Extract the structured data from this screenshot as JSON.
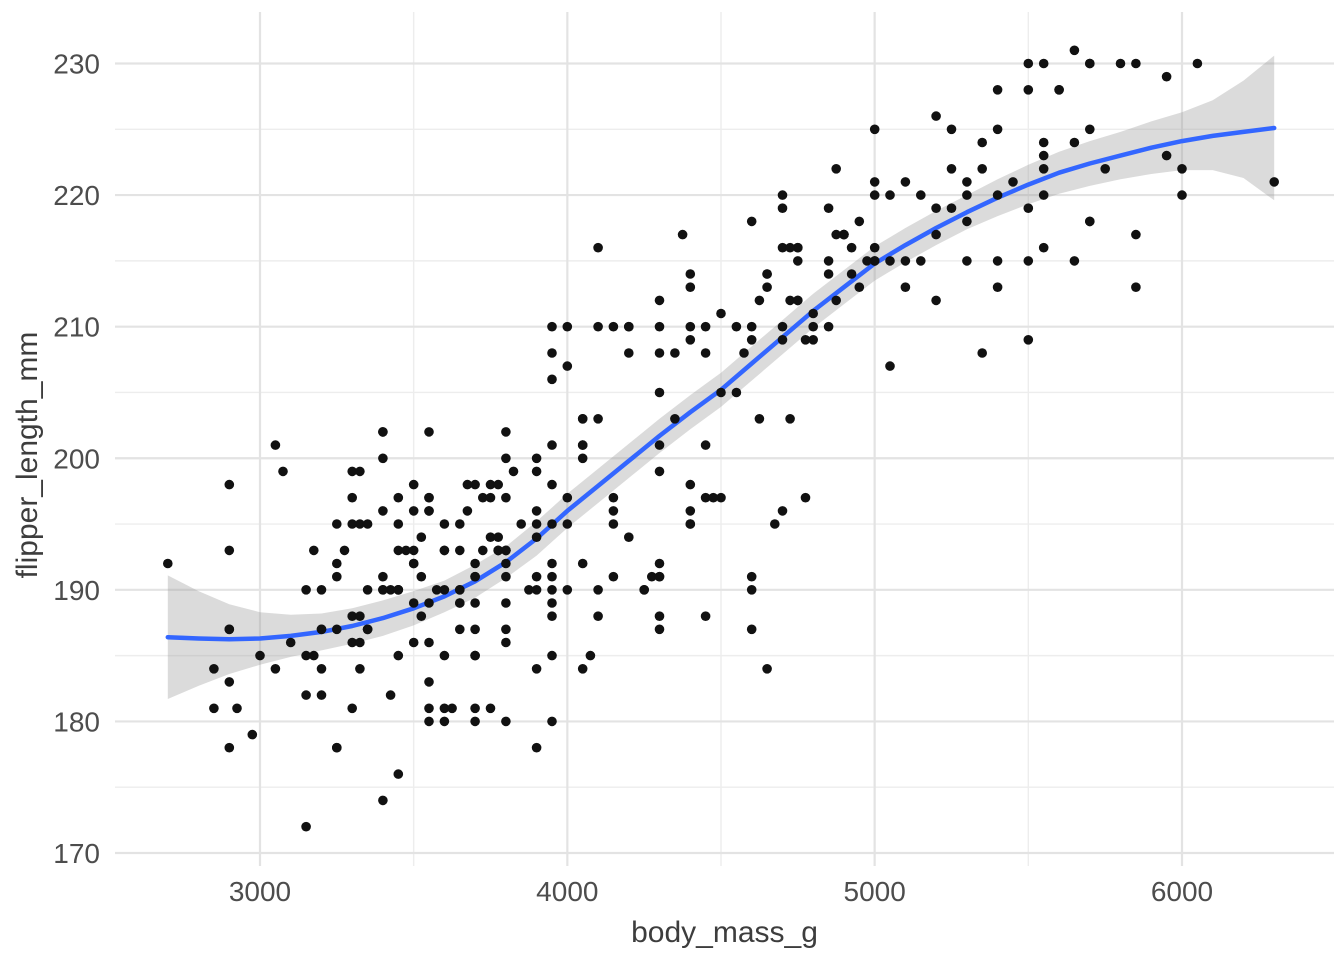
{
  "chart_data": {
    "type": "scatter",
    "title": "",
    "xlabel": "body_mass_g",
    "ylabel": "flipper_length_mm",
    "x_ticks": [
      3000,
      4000,
      5000,
      6000
    ],
    "x_minor_ticks": [
      3500,
      4500,
      5500
    ],
    "y_ticks": [
      170,
      180,
      190,
      200,
      210,
      220,
      230
    ],
    "y_minor_ticks": [
      175,
      185,
      195,
      205,
      215,
      225
    ],
    "xlim": [
      2520,
      6480
    ],
    "ylim": [
      169,
      234
    ],
    "grid": "on",
    "legend": "none",
    "colors": {
      "point": "#111111",
      "smooth_line": "#3366FF",
      "band": "#999999",
      "band_opacity": 0.35,
      "grid_major": "#E3E3E3",
      "grid_minor": "#EDEDED",
      "tick_label": "#4D4D4D",
      "axis_title": "#3d3d3d"
    },
    "points": [
      [
        3750,
        181
      ],
      [
        3800,
        186
      ],
      [
        3250,
        195
      ],
      [
        3450,
        193
      ],
      [
        3650,
        190
      ],
      [
        3625,
        181
      ],
      [
        4675,
        195
      ],
      [
        3475,
        193
      ],
      [
        4250,
        190
      ],
      [
        3300,
        186
      ],
      [
        3700,
        180
      ],
      [
        3200,
        182
      ],
      [
        3800,
        191
      ],
      [
        4400,
        198
      ],
      [
        3700,
        185
      ],
      [
        3450,
        195
      ],
      [
        4500,
        197
      ],
      [
        3325,
        184
      ],
      [
        4200,
        194
      ],
      [
        3400,
        174
      ],
      [
        3600,
        180
      ],
      [
        3800,
        189
      ],
      [
        3950,
        185
      ],
      [
        3800,
        180
      ],
      [
        3800,
        187
      ],
      [
        3550,
        183
      ],
      [
        3200,
        187
      ],
      [
        3150,
        172
      ],
      [
        3950,
        180
      ],
      [
        3250,
        178
      ],
      [
        3900,
        178
      ],
      [
        3300,
        188
      ],
      [
        3900,
        184
      ],
      [
        3325,
        195
      ],
      [
        4150,
        196
      ],
      [
        3950,
        190
      ],
      [
        3550,
        180
      ],
      [
        3300,
        181
      ],
      [
        4650,
        184
      ],
      [
        3150,
        182
      ],
      [
        3900,
        195
      ],
      [
        3100,
        186
      ],
      [
        4400,
        196
      ],
      [
        3000,
        185
      ],
      [
        4600,
        190
      ],
      [
        3425,
        182
      ],
      [
        2975,
        179
      ],
      [
        3450,
        190
      ],
      [
        4150,
        191
      ],
      [
        3500,
        186
      ],
      [
        4300,
        188
      ],
      [
        3450,
        190
      ],
      [
        4050,
        200
      ],
      [
        2900,
        187
      ],
      [
        3700,
        191
      ],
      [
        3550,
        186
      ],
      [
        3800,
        193
      ],
      [
        2850,
        181
      ],
      [
        3750,
        194
      ],
      [
        3150,
        185
      ],
      [
        4400,
        195
      ],
      [
        3600,
        185
      ],
      [
        4050,
        192
      ],
      [
        2850,
        184
      ],
      [
        3950,
        192
      ],
      [
        3350,
        195
      ],
      [
        4100,
        188
      ],
      [
        3600,
        190
      ],
      [
        3950,
        189
      ],
      [
        3550,
        196
      ],
      [
        4300,
        191
      ],
      [
        3400,
        190
      ],
      [
        4450,
        197
      ],
      [
        2900,
        178
      ],
      [
        4300,
        192
      ],
      [
        3700,
        192
      ],
      [
        4300,
        205
      ],
      [
        2900,
        183
      ],
      [
        4100,
        190
      ],
      [
        3725,
        193
      ],
      [
        4725,
        203
      ],
      [
        3075,
        199
      ],
      [
        4250,
        190
      ],
      [
        2925,
        181
      ],
      [
        3550,
        197
      ],
      [
        3750,
        198
      ],
      [
        3900,
        191
      ],
      [
        3175,
        193
      ],
      [
        4775,
        197
      ],
      [
        3825,
        199
      ],
      [
        4600,
        187
      ],
      [
        3200,
        190
      ],
      [
        4275,
        191
      ],
      [
        3900,
        200
      ],
      [
        4075,
        185
      ],
      [
        2900,
        193
      ],
      [
        3775,
        193
      ],
      [
        3350,
        187
      ],
      [
        3325,
        188
      ],
      [
        3150,
        190
      ],
      [
        3500,
        192
      ],
      [
        3450,
        185
      ],
      [
        3875,
        190
      ],
      [
        3050,
        184
      ],
      [
        4000,
        195
      ],
      [
        3275,
        193
      ],
      [
        4300,
        187
      ],
      [
        3050,
        201
      ],
      [
        4000,
        190
      ],
      [
        3325,
        186
      ],
      [
        3500,
        193
      ],
      [
        3500,
        189
      ],
      [
        4475,
        197
      ],
      [
        3425,
        190
      ],
      [
        3900,
        194
      ],
      [
        3175,
        185
      ],
      [
        4600,
        191
      ],
      [
        3525,
        191
      ],
      [
        3950,
        195
      ],
      [
        3250,
        192
      ],
      [
        4050,
        184
      ],
      [
        3800,
        192
      ],
      [
        3550,
        202
      ],
      [
        3950,
        188
      ],
      [
        3650,
        190
      ],
      [
        3650,
        189
      ],
      [
        4000,
        197
      ],
      [
        3400,
        202
      ],
      [
        3775,
        193
      ],
      [
        4000,
        210
      ],
      [
        3700,
        187
      ],
      [
        3900,
        190
      ],
      [
        3550,
        189
      ],
      [
        3200,
        184
      ],
      [
        4300,
        199
      ],
      [
        3350,
        190
      ],
      [
        3550,
        181
      ],
      [
        3800,
        197
      ],
      [
        3500,
        198
      ],
      [
        3950,
        191
      ],
      [
        3600,
        193
      ],
      [
        3550,
        197
      ],
      [
        4300,
        191
      ],
      [
        3400,
        196
      ],
      [
        4450,
        188
      ],
      [
        3300,
        199
      ],
      [
        4350,
        203
      ],
      [
        3700,
        189
      ],
      [
        4700,
        196
      ],
      [
        2900,
        198
      ],
      [
        3450,
        176
      ],
      [
        3500,
        192
      ],
      [
        3900,
        196
      ],
      [
        3650,
        193
      ],
      [
        3525,
        188
      ],
      [
        3725,
        197
      ],
      [
        3950,
        198
      ],
      [
        3250,
        178
      ],
      [
        3750,
        197
      ],
      [
        4150,
        195
      ],
      [
        3700,
        198
      ],
      [
        3800,
        193
      ],
      [
        3775,
        194
      ],
      [
        3700,
        185
      ],
      [
        4050,
        201
      ],
      [
        3575,
        190
      ],
      [
        4050,
        201
      ],
      [
        3300,
        197
      ],
      [
        3700,
        181
      ],
      [
        3450,
        190
      ],
      [
        4400,
        195
      ],
      [
        3600,
        181
      ],
      [
        3400,
        191
      ],
      [
        2900,
        187
      ],
      [
        3800,
        193
      ],
      [
        3300,
        195
      ],
      [
        4150,
        197
      ],
      [
        3400,
        200
      ],
      [
        3800,
        200
      ],
      [
        3700,
        191
      ],
      [
        4550,
        205
      ],
      [
        3200,
        187
      ],
      [
        4300,
        201
      ],
      [
        3350,
        187
      ],
      [
        4100,
        203
      ],
      [
        3600,
        195
      ],
      [
        3900,
        199
      ],
      [
        3850,
        195
      ],
      [
        4800,
        210
      ],
      [
        2700,
        192
      ],
      [
        4500,
        205
      ],
      [
        3950,
        210
      ],
      [
        3650,
        187
      ],
      [
        3550,
        196
      ],
      [
        3500,
        196
      ],
      [
        3675,
        196
      ],
      [
        4450,
        201
      ],
      [
        3400,
        190
      ],
      [
        4300,
        212
      ],
      [
        3250,
        187
      ],
      [
        3675,
        198
      ],
      [
        3325,
        199
      ],
      [
        3950,
        201
      ],
      [
        3600,
        193
      ],
      [
        4050,
        203
      ],
      [
        3350,
        187
      ],
      [
        3450,
        197
      ],
      [
        3250,
        191
      ],
      [
        4050,
        203
      ],
      [
        3800,
        202
      ],
      [
        3525,
        194
      ],
      [
        3950,
        206
      ],
      [
        3650,
        189
      ],
      [
        3650,
        195
      ],
      [
        4000,
        207
      ],
      [
        3400,
        202
      ],
      [
        3775,
        193
      ],
      [
        4100,
        210
      ],
      [
        3775,
        198
      ],
      [
        4500,
        211
      ],
      [
        5700,
        230
      ],
      [
        4450,
        210
      ],
      [
        5700,
        218
      ],
      [
        5400,
        215
      ],
      [
        4550,
        210
      ],
      [
        4800,
        211
      ],
      [
        5200,
        219
      ],
      [
        4400,
        209
      ],
      [
        5150,
        215
      ],
      [
        4650,
        214
      ],
      [
        5550,
        216
      ],
      [
        4650,
        214
      ],
      [
        5850,
        213
      ],
      [
        4200,
        210
      ],
      [
        5850,
        217
      ],
      [
        4150,
        210
      ],
      [
        6300,
        221
      ],
      [
        4800,
        209
      ],
      [
        5350,
        222
      ],
      [
        5700,
        218
      ],
      [
        5000,
        215
      ],
      [
        4400,
        213
      ],
      [
        5050,
        215
      ],
      [
        5000,
        215
      ],
      [
        5100,
        215
      ],
      [
        4100,
        216
      ],
      [
        5650,
        215
      ],
      [
        4600,
        210
      ],
      [
        5550,
        220
      ],
      [
        5250,
        222
      ],
      [
        4700,
        209
      ],
      [
        5050,
        207
      ],
      [
        6050,
        230
      ],
      [
        5150,
        220
      ],
      [
        5400,
        220
      ],
      [
        4950,
        213
      ],
      [
        5250,
        219
      ],
      [
        4350,
        208
      ],
      [
        5350,
        208
      ],
      [
        3950,
        208
      ],
      [
        5700,
        225
      ],
      [
        4300,
        208
      ],
      [
        4750,
        216
      ],
      [
        5550,
        222
      ],
      [
        4900,
        217
      ],
      [
        4200,
        210
      ],
      [
        5400,
        225
      ],
      [
        5100,
        213
      ],
      [
        5300,
        215
      ],
      [
        4850,
        210
      ],
      [
        5300,
        220
      ],
      [
        4400,
        210
      ],
      [
        5000,
        225
      ],
      [
        4900,
        217
      ],
      [
        5050,
        220
      ],
      [
        4300,
        210
      ],
      [
        5000,
        220
      ],
      [
        4450,
        208
      ],
      [
        5550,
        224
      ],
      [
        4200,
        208
      ],
      [
        5300,
        221
      ],
      [
        4400,
        214
      ],
      [
        5650,
        231
      ],
      [
        4700,
        219
      ],
      [
        5700,
        230
      ],
      [
        4650,
        213
      ],
      [
        5550,
        223
      ],
      [
        4750,
        216
      ],
      [
        5000,
        221
      ],
      [
        5100,
        221
      ],
      [
        4900,
        217
      ],
      [
        4700,
        216
      ],
      [
        5800,
        230
      ],
      [
        4600,
        209
      ],
      [
        6000,
        220
      ],
      [
        4750,
        215
      ],
      [
        5950,
        223
      ],
      [
        4625,
        212
      ],
      [
        5450,
        221
      ],
      [
        4725,
        212
      ],
      [
        5350,
        224
      ],
      [
        4750,
        212
      ],
      [
        5600,
        228
      ],
      [
        4600,
        218
      ],
      [
        5300,
        218
      ],
      [
        4875,
        212
      ],
      [
        5550,
        230
      ],
      [
        4950,
        218
      ],
      [
        5400,
        228
      ],
      [
        4750,
        212
      ],
      [
        5650,
        224
      ],
      [
        4850,
        214
      ],
      [
        5200,
        226
      ],
      [
        4925,
        216
      ],
      [
        4875,
        222
      ],
      [
        4625,
        203
      ],
      [
        5250,
        225
      ],
      [
        4850,
        219
      ],
      [
        5600,
        228
      ],
      [
        4975,
        215
      ],
      [
        5500,
        228
      ],
      [
        4725,
        216
      ],
      [
        5500,
        215
      ],
      [
        4700,
        210
      ],
      [
        5500,
        219
      ],
      [
        4575,
        208
      ],
      [
        5500,
        209
      ],
      [
        5000,
        216
      ],
      [
        5950,
        229
      ],
      [
        4700,
        220
      ],
      [
        5500,
        230
      ],
      [
        4375,
        217
      ],
      [
        5850,
        230
      ],
      [
        4875,
        217
      ],
      [
        6000,
        222
      ],
      [
        4925,
        214
      ],
      [
        4850,
        215
      ],
      [
        5750,
        222
      ],
      [
        5200,
        212
      ],
      [
        5400,
        213
      ],
      [
        5200,
        217
      ],
      [
        4775,
        209
      ]
    ],
    "smooth": [
      [
        2700,
        186.4,
        181.7,
        191.1
      ],
      [
        2800,
        186.3,
        182.7,
        189.9
      ],
      [
        2900,
        186.25,
        183.6,
        188.9
      ],
      [
        3000,
        186.3,
        184.3,
        188.3
      ],
      [
        3100,
        186.5,
        184.9,
        188.1
      ],
      [
        3200,
        186.8,
        185.4,
        188.2
      ],
      [
        3300,
        187.25,
        185.9,
        188.6
      ],
      [
        3400,
        187.85,
        186.5,
        189.2
      ],
      [
        3500,
        188.6,
        187.3,
        189.9
      ],
      [
        3600,
        189.5,
        188.3,
        190.7
      ],
      [
        3700,
        190.65,
        189.4,
        191.9
      ],
      [
        3800,
        192.1,
        190.9,
        193.3
      ],
      [
        3900,
        193.9,
        192.6,
        195.2
      ],
      [
        4000,
        196.0,
        194.7,
        197.3
      ],
      [
        4100,
        197.9,
        196.6,
        199.2
      ],
      [
        4200,
        199.8,
        198.5,
        201.1
      ],
      [
        4300,
        201.7,
        200.4,
        203.0
      ],
      [
        4400,
        203.5,
        202.2,
        204.8
      ],
      [
        4500,
        205.2,
        203.9,
        206.5
      ],
      [
        4600,
        207.2,
        205.9,
        208.5
      ],
      [
        4700,
        209.2,
        207.9,
        210.5
      ],
      [
        4800,
        211.2,
        209.9,
        212.5
      ],
      [
        4900,
        213.0,
        211.7,
        214.3
      ],
      [
        5000,
        214.8,
        213.5,
        216.1
      ],
      [
        5100,
        216.2,
        214.9,
        217.5
      ],
      [
        5200,
        217.5,
        216.2,
        218.8
      ],
      [
        5300,
        218.7,
        217.4,
        220.0
      ],
      [
        5400,
        219.8,
        218.4,
        221.2
      ],
      [
        5500,
        220.8,
        219.3,
        222.3
      ],
      [
        5600,
        221.7,
        220.1,
        223.3
      ],
      [
        5700,
        222.4,
        220.7,
        224.1
      ],
      [
        5800,
        223.0,
        221.2,
        224.8
      ],
      [
        5900,
        223.6,
        221.6,
        225.6
      ],
      [
        6000,
        224.1,
        221.9,
        226.3
      ],
      [
        6100,
        224.5,
        221.9,
        227.2
      ],
      [
        6200,
        224.8,
        221.3,
        228.7
      ],
      [
        6300,
        225.1,
        219.6,
        230.6
      ]
    ]
  }
}
